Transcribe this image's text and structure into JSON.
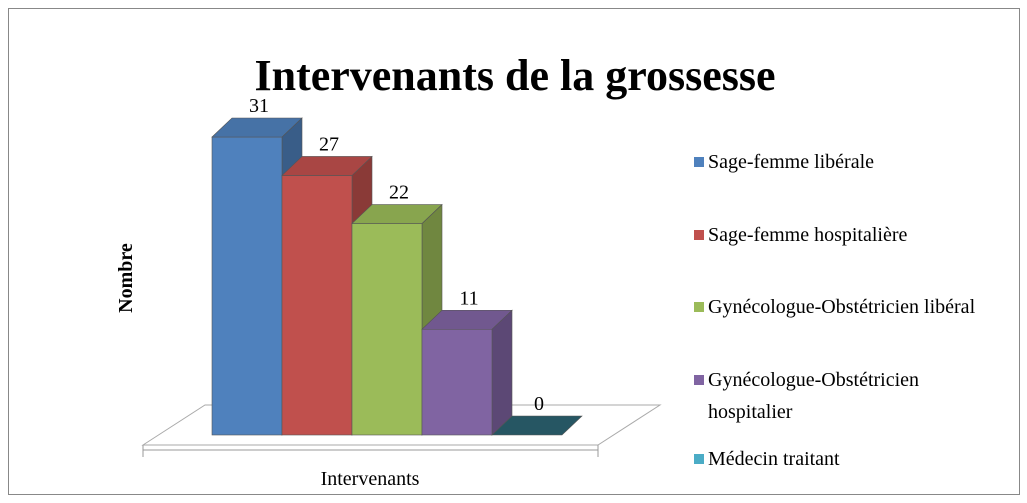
{
  "chart_data": {
    "type": "bar3d",
    "title": "Intervenants de la grossesse",
    "y_label": "Nombre",
    "x_label": "Intervenants",
    "ylim": [
      0,
      31
    ],
    "series": [
      {
        "name": "Sage-femme libérale",
        "color": "#4f81bd",
        "values": [
          31
        ]
      },
      {
        "name": "Sage-femme hospitalière",
        "color": "#c0504d",
        "values": [
          27
        ]
      },
      {
        "name": "Gynécologue-Obstétricien libéral",
        "color": "#9bbb59",
        "values": [
          22
        ]
      },
      {
        "name": "Gynécologue-Obstétricien hospitalier",
        "color": "#8064a2",
        "values": [
          11
        ]
      },
      {
        "name": "Médecin traitant",
        "color": "#4bacc6",
        "values": [
          0
        ]
      }
    ]
  }
}
